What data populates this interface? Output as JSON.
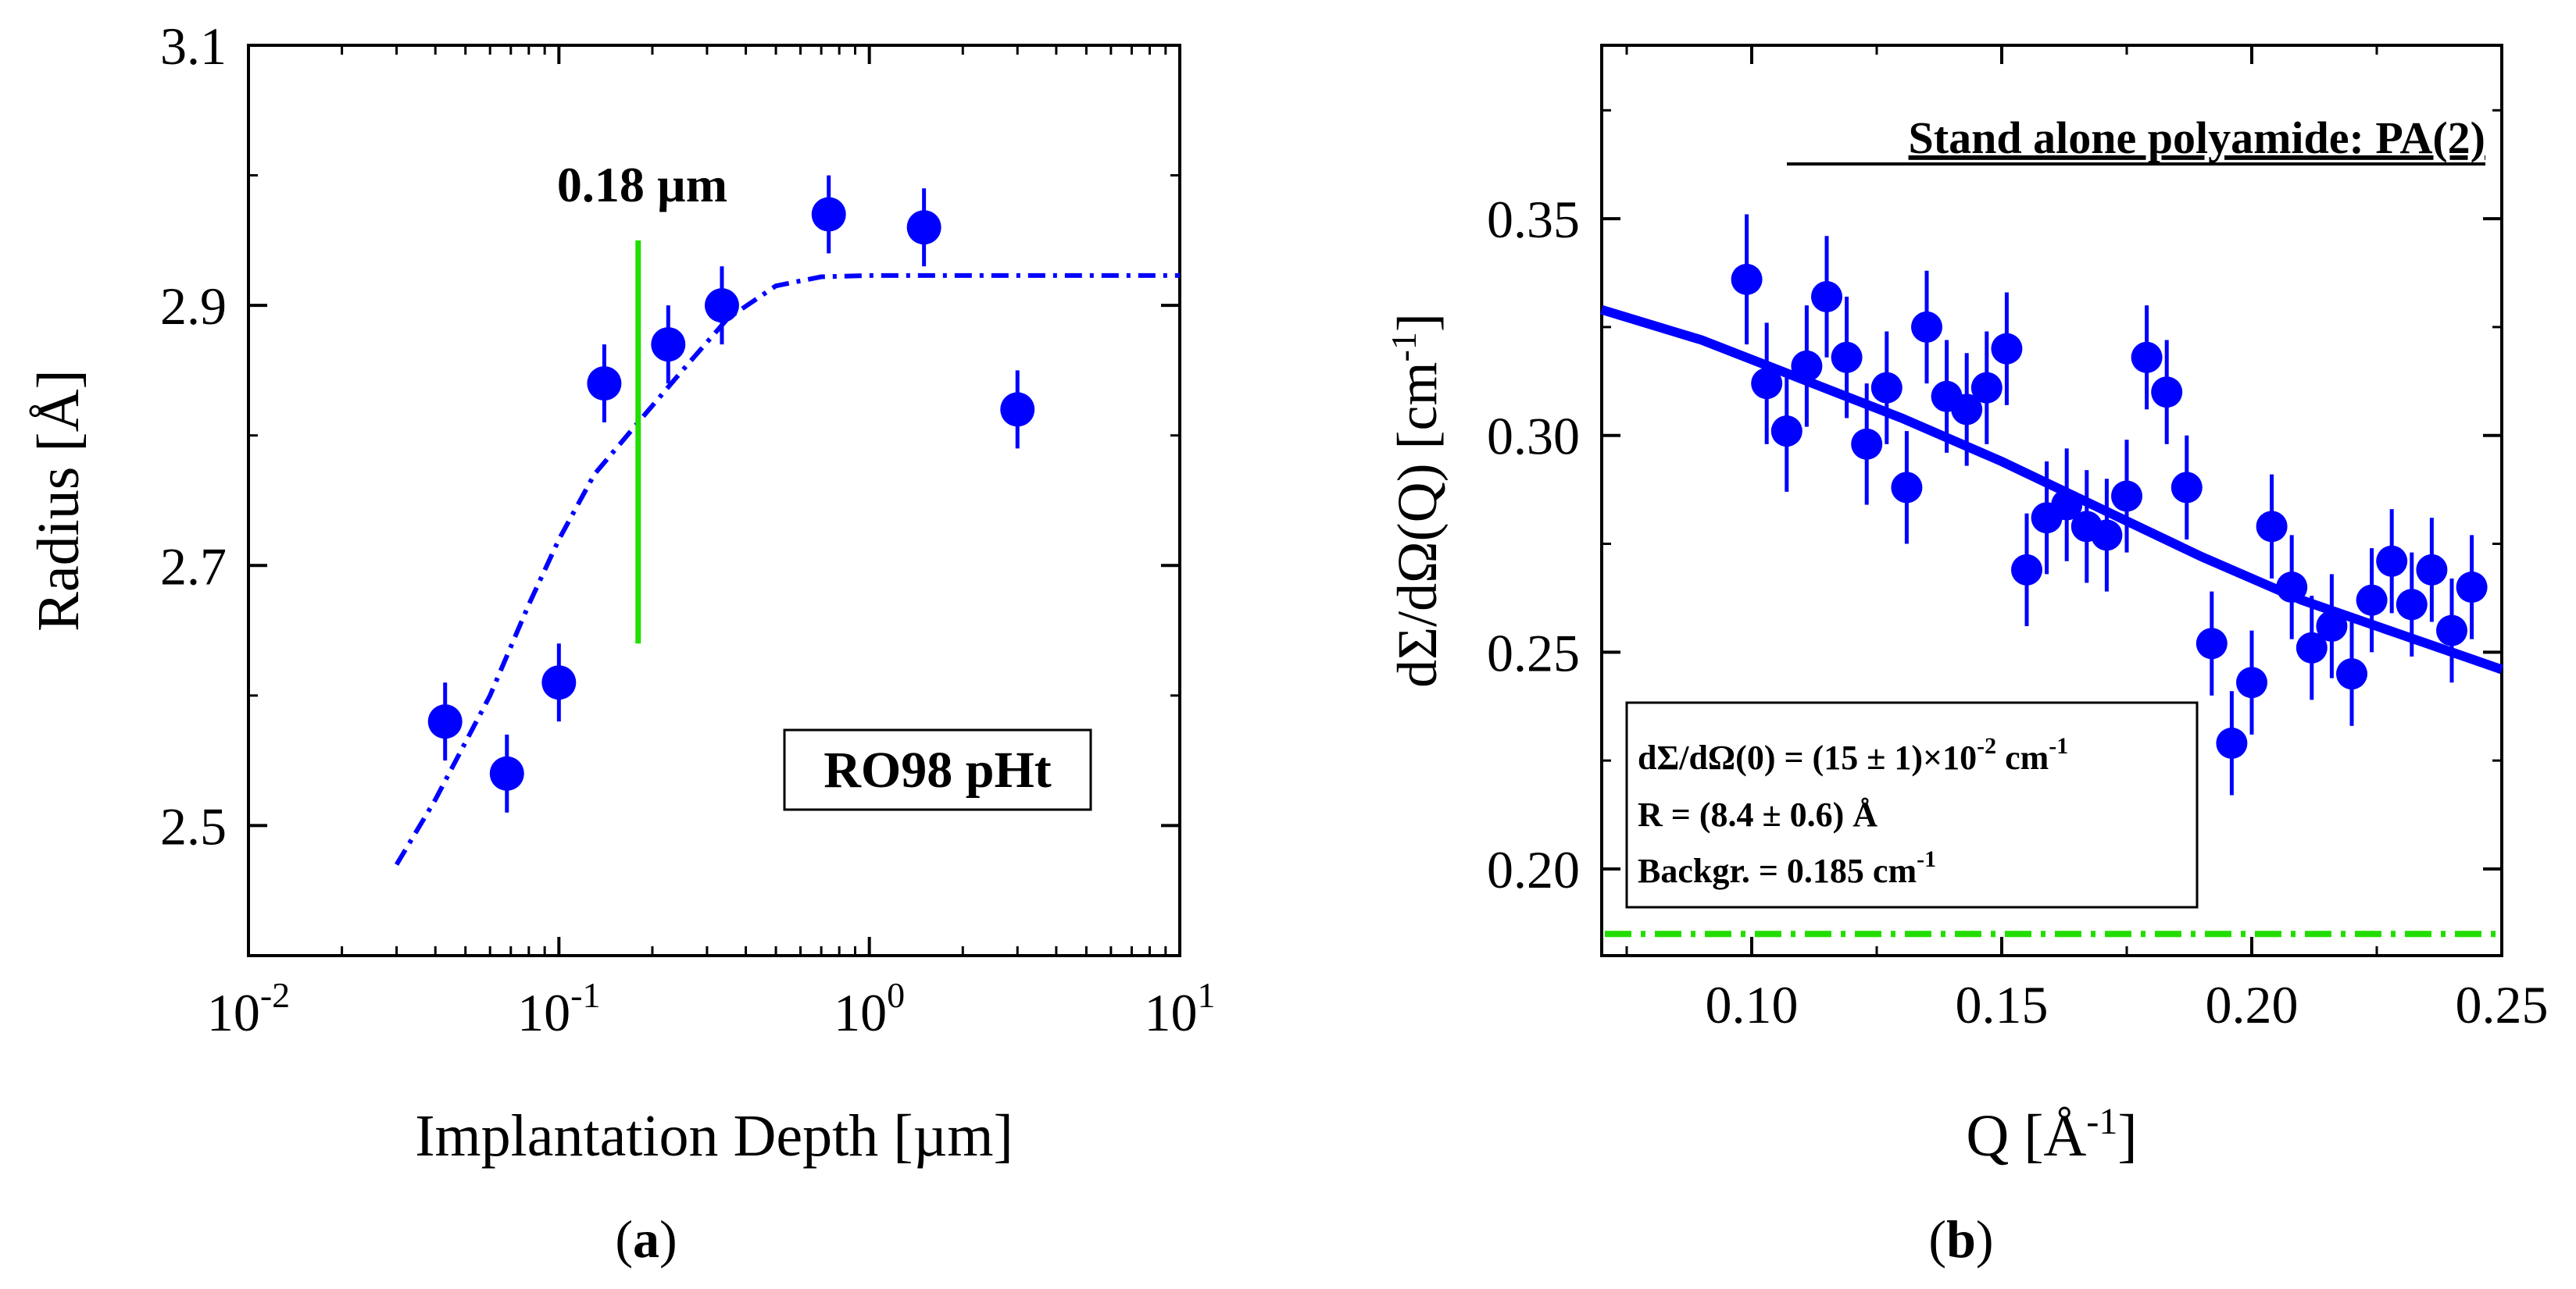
{
  "colors": {
    "points": "#0000ff",
    "fit": "#0000ff",
    "marker_line": "#22dd00",
    "background_line": "#22dd00",
    "axes": "#000000"
  },
  "chart_data": [
    {
      "id": "a",
      "type": "scatter",
      "caption_letter": "a",
      "caption_open": "(",
      "caption_close": ")",
      "xlabel": "Implantation Depth [µm]",
      "ylabel": "Radius [Å]",
      "xscale": "log",
      "xlim": [
        0.01,
        10
      ],
      "ylim": [
        2.4,
        3.1
      ],
      "xticks": [
        {
          "value": 0.01,
          "base": "10",
          "exp": "-2"
        },
        {
          "value": 0.1,
          "base": "10",
          "exp": "-1"
        },
        {
          "value": 1,
          "base": "10",
          "exp": "0"
        },
        {
          "value": 10,
          "base": "10",
          "exp": "1"
        }
      ],
      "yticks": [
        2.5,
        2.7,
        2.9,
        3.1
      ],
      "ytick_labels": [
        "2.5",
        "2.7",
        "2.9",
        "3.1"
      ],
      "series": [
        {
          "name": "Radius",
          "points": [
            {
              "x": 0.043,
              "y": 2.58,
              "err": 0.03
            },
            {
              "x": 0.068,
              "y": 2.54,
              "err": 0.03
            },
            {
              "x": 0.1,
              "y": 2.61,
              "err": 0.03
            },
            {
              "x": 0.14,
              "y": 2.84,
              "err": 0.03
            },
            {
              "x": 0.225,
              "y": 2.87,
              "err": 0.03
            },
            {
              "x": 0.335,
              "y": 2.9,
              "err": 0.03
            },
            {
              "x": 0.74,
              "y": 2.97,
              "err": 0.03
            },
            {
              "x": 1.5,
              "y": 2.96,
              "err": 0.03
            },
            {
              "x": 3.0,
              "y": 2.82,
              "err": 0.03
            }
          ]
        }
      ],
      "fit_curve": {
        "style": "dash-dot",
        "points": [
          [
            0.03,
            2.47
          ],
          [
            0.04,
            2.52
          ],
          [
            0.06,
            2.6
          ],
          [
            0.08,
            2.67
          ],
          [
            0.1,
            2.72
          ],
          [
            0.13,
            2.77
          ],
          [
            0.18,
            2.81
          ],
          [
            0.25,
            2.85
          ],
          [
            0.35,
            2.89
          ],
          [
            0.5,
            2.915
          ],
          [
            0.7,
            2.922
          ],
          [
            1.0,
            2.923
          ],
          [
            3.0,
            2.923
          ],
          [
            10.0,
            2.923
          ]
        ]
      },
      "marker": {
        "x": 0.18,
        "y1": 2.64,
        "y2": 2.95,
        "label": "0.18 µm"
      },
      "annotation": "RO98 pHt"
    },
    {
      "id": "b",
      "type": "scatter",
      "caption_letter": "b",
      "caption_open": "(",
      "caption_close": ")",
      "xlabel": "Q [Å-1]",
      "xlabel_main": "Q [Å",
      "xlabel_sup": "-1",
      "xlabel_close": "]",
      "ylabel": "dΣ/dΩ(Q) [cm-1]",
      "ylabel_main": "dΣ/dΩ(Q) [cm",
      "ylabel_sup": "-1",
      "ylabel_close": "]",
      "xlim": [
        0.07,
        0.25
      ],
      "ylim": [
        0.18,
        0.39
      ],
      "xticks": [
        0.1,
        0.15,
        0.2,
        0.25
      ],
      "xtick_labels": [
        "0.10",
        "0.15",
        "0.20",
        "0.25"
      ],
      "yticks": [
        0.2,
        0.25,
        0.3,
        0.35
      ],
      "ytick_labels": [
        "0.20",
        "0.25",
        "0.30",
        "0.35"
      ],
      "series": [
        {
          "name": "dΣ/dΩ(Q)",
          "points": [
            {
              "x": 0.099,
              "y": 0.336,
              "err": 0.015
            },
            {
              "x": 0.103,
              "y": 0.312,
              "err": 0.014
            },
            {
              "x": 0.107,
              "y": 0.301,
              "err": 0.014
            },
            {
              "x": 0.111,
              "y": 0.316,
              "err": 0.014
            },
            {
              "x": 0.115,
              "y": 0.332,
              "err": 0.014
            },
            {
              "x": 0.119,
              "y": 0.318,
              "err": 0.014
            },
            {
              "x": 0.123,
              "y": 0.298,
              "err": 0.014
            },
            {
              "x": 0.127,
              "y": 0.311,
              "err": 0.013
            },
            {
              "x": 0.131,
              "y": 0.288,
              "err": 0.013
            },
            {
              "x": 0.135,
              "y": 0.325,
              "err": 0.013
            },
            {
              "x": 0.139,
              "y": 0.309,
              "err": 0.013
            },
            {
              "x": 0.143,
              "y": 0.306,
              "err": 0.013
            },
            {
              "x": 0.147,
              "y": 0.311,
              "err": 0.013
            },
            {
              "x": 0.151,
              "y": 0.32,
              "err": 0.013
            },
            {
              "x": 0.155,
              "y": 0.269,
              "err": 0.013
            },
            {
              "x": 0.159,
              "y": 0.281,
              "err": 0.013
            },
            {
              "x": 0.163,
              "y": 0.284,
              "err": 0.013
            },
            {
              "x": 0.167,
              "y": 0.279,
              "err": 0.013
            },
            {
              "x": 0.171,
              "y": 0.277,
              "err": 0.013
            },
            {
              "x": 0.175,
              "y": 0.286,
              "err": 0.013
            },
            {
              "x": 0.179,
              "y": 0.318,
              "err": 0.012
            },
            {
              "x": 0.183,
              "y": 0.31,
              "err": 0.012
            },
            {
              "x": 0.187,
              "y": 0.288,
              "err": 0.012
            },
            {
              "x": 0.192,
              "y": 0.252,
              "err": 0.012
            },
            {
              "x": 0.196,
              "y": 0.229,
              "err": 0.012
            },
            {
              "x": 0.2,
              "y": 0.243,
              "err": 0.012
            },
            {
              "x": 0.204,
              "y": 0.279,
              "err": 0.012
            },
            {
              "x": 0.208,
              "y": 0.265,
              "err": 0.012
            },
            {
              "x": 0.212,
              "y": 0.251,
              "err": 0.012
            },
            {
              "x": 0.216,
              "y": 0.256,
              "err": 0.012
            },
            {
              "x": 0.22,
              "y": 0.245,
              "err": 0.012
            },
            {
              "x": 0.224,
              "y": 0.262,
              "err": 0.012
            },
            {
              "x": 0.228,
              "y": 0.271,
              "err": 0.012
            },
            {
              "x": 0.232,
              "y": 0.261,
              "err": 0.012
            },
            {
              "x": 0.236,
              "y": 0.269,
              "err": 0.012
            },
            {
              "x": 0.24,
              "y": 0.255,
              "err": 0.012
            },
            {
              "x": 0.244,
              "y": 0.265,
              "err": 0.012
            }
          ]
        }
      ],
      "fit_curve": {
        "style": "solid",
        "points": [
          [
            0.07,
            0.329
          ],
          [
            0.09,
            0.322
          ],
          [
            0.11,
            0.313
          ],
          [
            0.13,
            0.304
          ],
          [
            0.15,
            0.294
          ],
          [
            0.17,
            0.283
          ],
          [
            0.19,
            0.272
          ],
          [
            0.21,
            0.262
          ],
          [
            0.23,
            0.254
          ],
          [
            0.25,
            0.246
          ]
        ]
      },
      "background_level": 0.185,
      "title_annotation": "Stand alone polyamide: PA(2)",
      "fit_results": {
        "line1_main": "dΣ/dΩ(0) = (15 ± 1)×10",
        "line1_sup": "-2",
        "line1_unit": " cm",
        "line1_unit_sup": "-1",
        "line2": "R = (8.4 ± 0.6) Å",
        "line3_main": "Backgr. = 0.185 cm",
        "line3_sup": "-1"
      }
    }
  ]
}
